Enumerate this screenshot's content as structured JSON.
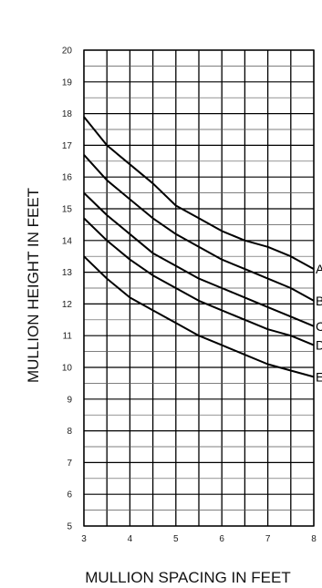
{
  "chart_data": {
    "type": "line",
    "title": "",
    "xlabel": "MULLION SPACING IN FEET",
    "ylabel": "MULLION HEIGHT IN FEET",
    "xlim": [
      3,
      8
    ],
    "ylim": [
      5,
      20
    ],
    "x_ticks": [
      "3",
      "4",
      "5",
      "6",
      "7",
      "8"
    ],
    "y_ticks": [
      "5",
      "6",
      "7",
      "8",
      "9",
      "10",
      "11",
      "12",
      "13",
      "14",
      "15",
      "16",
      "17",
      "18",
      "19",
      "20"
    ],
    "grid": true,
    "series": [
      {
        "name": "A",
        "x": [
          3,
          3.5,
          4,
          4.5,
          5,
          5.5,
          6,
          6.5,
          7,
          7.5,
          8
        ],
        "y": [
          17.9,
          17.0,
          16.4,
          15.8,
          15.1,
          14.7,
          14.3,
          14.0,
          13.8,
          13.5,
          13.1
        ]
      },
      {
        "name": "B",
        "x": [
          3,
          3.5,
          4,
          4.5,
          5,
          5.5,
          6,
          6.5,
          7,
          7.5,
          8
        ],
        "y": [
          16.7,
          15.9,
          15.3,
          14.7,
          14.2,
          13.8,
          13.4,
          13.1,
          12.8,
          12.5,
          12.1
        ]
      },
      {
        "name": "C",
        "x": [
          3,
          3.5,
          4,
          4.5,
          5,
          5.5,
          6,
          6.5,
          7,
          7.5,
          8
        ],
        "y": [
          15.5,
          14.8,
          14.2,
          13.6,
          13.2,
          12.8,
          12.5,
          12.2,
          11.9,
          11.6,
          11.3
        ]
      },
      {
        "name": "D",
        "x": [
          3,
          3.5,
          4,
          4.5,
          5,
          5.5,
          6,
          6.5,
          7,
          7.5,
          8
        ],
        "y": [
          14.7,
          14.0,
          13.4,
          12.9,
          12.5,
          12.1,
          11.8,
          11.5,
          11.2,
          11.0,
          10.7
        ]
      },
      {
        "name": "E",
        "x": [
          3,
          3.5,
          4,
          4.5,
          5,
          5.5,
          6,
          6.5,
          7,
          7.5,
          8
        ],
        "y": [
          13.5,
          12.8,
          12.2,
          11.8,
          11.4,
          11.0,
          10.7,
          10.4,
          10.1,
          9.9,
          9.7
        ]
      }
    ]
  }
}
